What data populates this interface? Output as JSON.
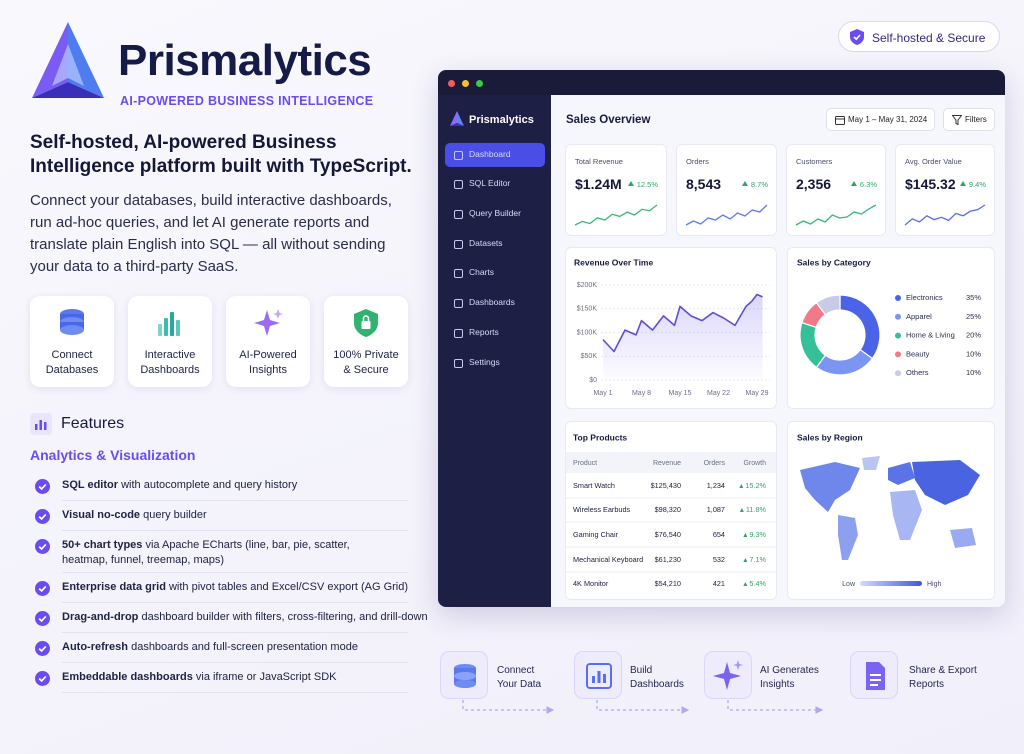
{
  "brand": {
    "name": "Prismalytics",
    "tagline": "AI-POWERED BUSINESS INTELLIGENCE"
  },
  "intro": {
    "headline": [
      "Self-hosted, AI-powered Business",
      "Intelligence platform built with TypeScript."
    ],
    "description": [
      "Connect your databases, build interactive dashboards,",
      "run ad-hoc queries, and let AI generate reports and",
      "translate plain English into SQL — all without sending",
      "your data to a third-party SaaS."
    ]
  },
  "highlights": [
    [
      "Connect",
      "Databases"
    ],
    [
      "Interactive",
      "Dashboards"
    ],
    [
      "AI-Powered",
      "Insights"
    ],
    [
      "100% Private",
      "& Secure"
    ]
  ],
  "features": {
    "title": "Features",
    "section": "Analytics & Visualization",
    "items": [
      {
        "bold": "SQL editor",
        "text": "with autocomplete and query history"
      },
      {
        "bold": "Visual no-code",
        "text": "query builder"
      },
      {
        "bold": "50+ chart types",
        "text": "via Apache ECharts (line, bar, pie, scatter, heatmap, funnel, treemap, maps)"
      },
      {
        "bold": "Enterprise data grid",
        "text": "with pivot tables and Excel/CSV export (AG Grid)"
      },
      {
        "bold": "Drag-and-drop",
        "text": "dashboard builder with filters, cross-filtering, and drill-down"
      },
      {
        "bold": "Auto-refresh",
        "text": "dashboards and full-screen presentation mode"
      },
      {
        "bold": "Embeddable dashboards",
        "text": "via iframe or JavaScript SDK"
      }
    ]
  },
  "badge": "Self-hosted & Secure",
  "dashboard": {
    "app_name": "Prismalytics",
    "nav": [
      "Dashboard",
      "SQL Editor",
      "Query Builder",
      "Datasets",
      "Charts",
      "Dashboards",
      "Reports",
      "Settings"
    ],
    "active_nav": 0,
    "title": "Sales Overview",
    "date_range": "May 1 – May 31, 2024",
    "filters": "Filters",
    "kpis": [
      {
        "label": "Total Revenue",
        "value": "$1.24M",
        "change": "12.5%",
        "color": "#34b77c",
        "trend": [
          40,
          45,
          42,
          50,
          47,
          55,
          52,
          58,
          54,
          62,
          60,
          68
        ]
      },
      {
        "label": "Orders",
        "value": "8,543",
        "change": "8.7%",
        "color": "#5a7cf0",
        "trend": [
          40,
          44,
          41,
          47,
          45,
          50,
          46,
          52,
          49,
          55,
          53,
          60
        ]
      },
      {
        "label": "Customers",
        "value": "2,356",
        "change": "6.3%",
        "color": "#34b77c",
        "trend": [
          42,
          46,
          43,
          48,
          45,
          52,
          49,
          50,
          55,
          53,
          58,
          62
        ]
      },
      {
        "label": "Avg. Order Value",
        "value": "$145.32",
        "change": "9.4%",
        "color": "#5a6bf0",
        "trend": [
          40,
          48,
          44,
          52,
          47,
          50,
          46,
          55,
          52,
          58,
          60,
          66
        ]
      }
    ],
    "top_products": {
      "title": "Top Products",
      "columns": [
        "Product",
        "Revenue",
        "Orders",
        "Growth"
      ],
      "rows": [
        [
          "Smart Watch",
          "$125,430",
          "1,234",
          "15.2%"
        ],
        [
          "Wireless Earbuds",
          "$98,320",
          "1,087",
          "11.8%"
        ],
        [
          "Gaming Chair",
          "$76,540",
          "654",
          "9.3%"
        ],
        [
          "Mechanical Keyboard",
          "$61,230",
          "532",
          "7.1%"
        ],
        [
          "4K Monitor",
          "$54,210",
          "421",
          "5.4%"
        ]
      ]
    },
    "region": {
      "title": "Sales by Region",
      "low": "Low",
      "high": "High"
    }
  },
  "chart_data": [
    {
      "type": "line",
      "title": "Revenue Over Time",
      "x": [
        1,
        3,
        5,
        7,
        8,
        10,
        12,
        14,
        15,
        17,
        19,
        21,
        23,
        25,
        27,
        28,
        29,
        30
      ],
      "values": [
        85000,
        60000,
        105000,
        95000,
        125000,
        105000,
        135000,
        115000,
        155000,
        135000,
        125000,
        142000,
        130000,
        115000,
        155000,
        165000,
        180000,
        175000
      ],
      "color": "#5a4fd6",
      "xlim": [
        1,
        30
      ],
      "xticks": [
        {
          "value": 1,
          "label": "May 1"
        },
        {
          "value": 8,
          "label": "May 8"
        },
        {
          "value": 15,
          "label": "May 15"
        },
        {
          "value": 22,
          "label": "May 22"
        },
        {
          "value": 29,
          "label": "May 29"
        }
      ],
      "ylim": [
        0,
        200000
      ],
      "yticks": [
        {
          "value": 0,
          "label": "$0"
        },
        {
          "value": 50000,
          "label": "$50K"
        },
        {
          "value": 100000,
          "label": "$100K"
        },
        {
          "value": 150000,
          "label": "$150K"
        },
        {
          "value": 200000,
          "label": "$200K"
        }
      ],
      "grid": true
    },
    {
      "type": "pie",
      "title": "Sales by Category",
      "donut": true,
      "categories": [
        "Electronics",
        "Apparel",
        "Home & Living",
        "Beauty",
        "Others"
      ],
      "values": [
        35,
        25,
        20,
        10,
        10
      ],
      "value_labels": [
        "35%",
        "25%",
        "20%",
        "10%",
        "10%"
      ],
      "colors": [
        "#4a63e7",
        "#7b96f2",
        "#35c09a",
        "#f07a8a",
        "#c9c9e8"
      ]
    }
  ],
  "workflow": [
    [
      "Connect",
      "Your Data"
    ],
    [
      "Build",
      "Dashboards"
    ],
    [
      "AI Generates",
      "Insights"
    ],
    [
      "Share & Export",
      "Reports"
    ]
  ]
}
